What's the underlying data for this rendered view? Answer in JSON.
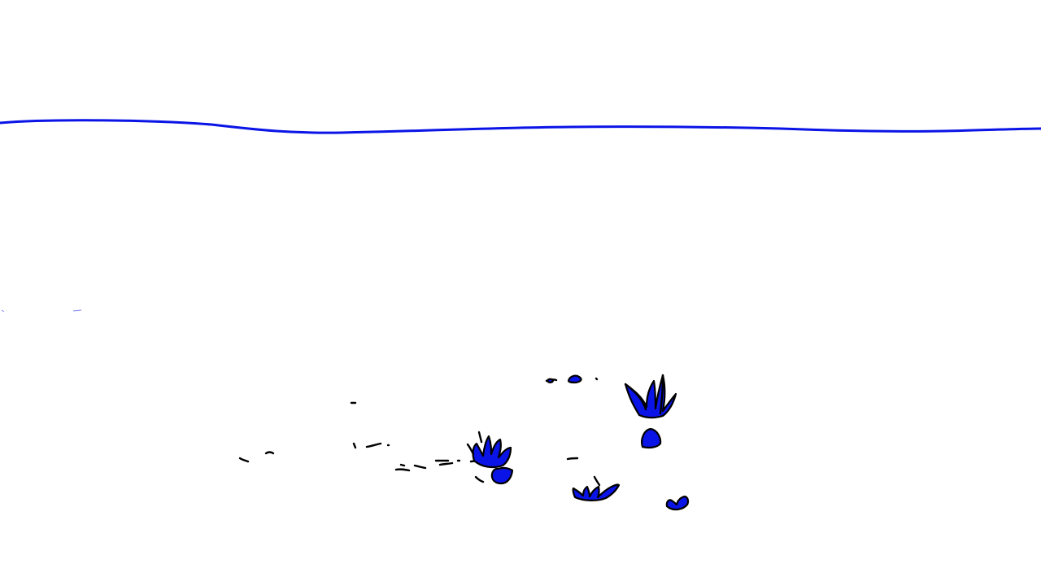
{
  "scene": {
    "background_color": "#ffffff",
    "line_color": "#0a14e6",
    "ink_color": "#000000",
    "fill_color": "#0a14e6"
  }
}
